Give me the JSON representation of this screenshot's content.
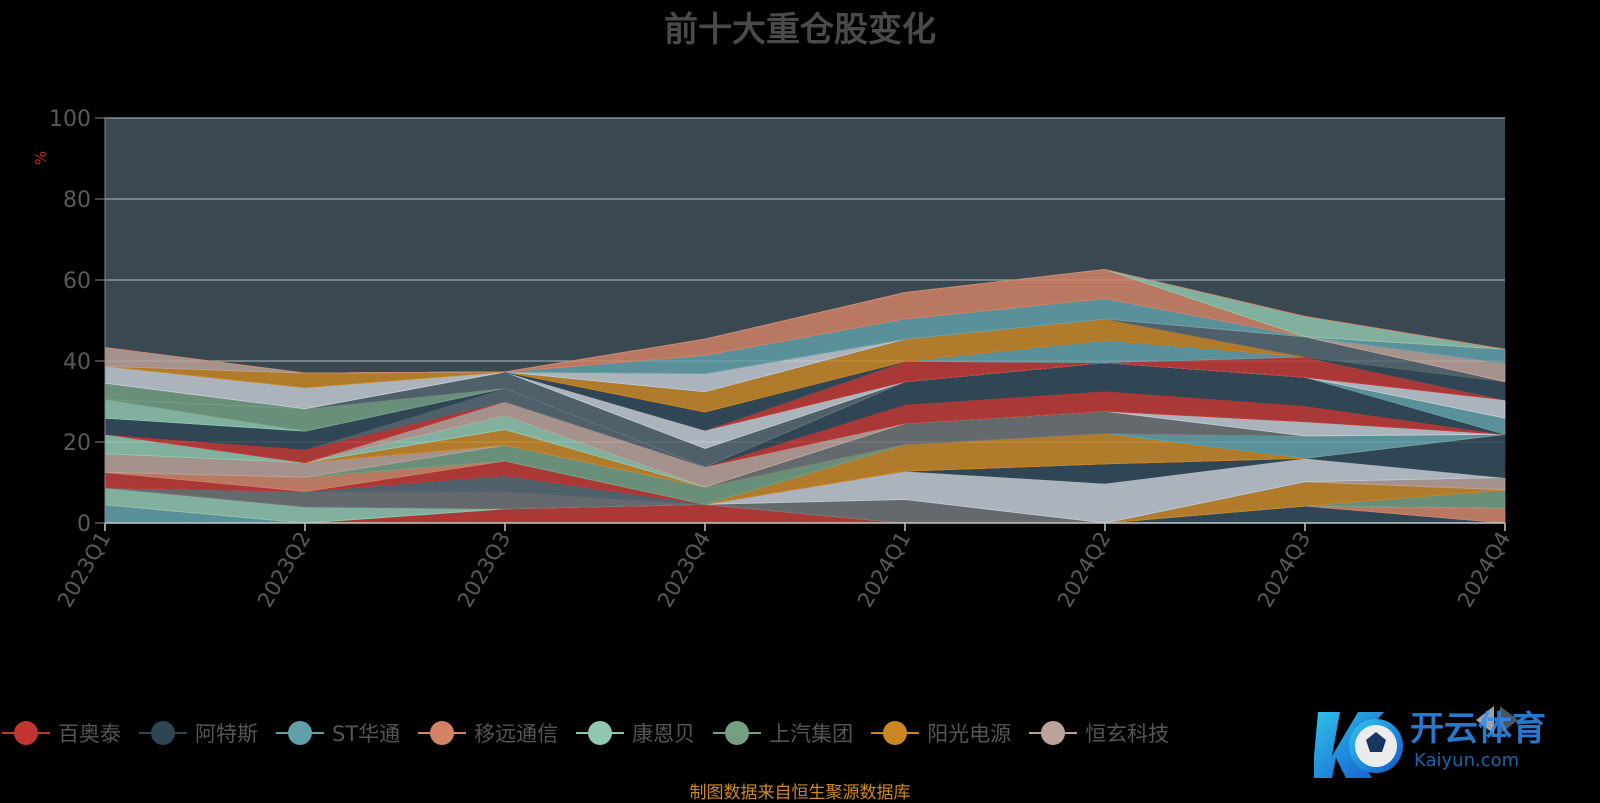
{
  "chart_data": {
    "type": "area",
    "title": "前十大重仓股变化",
    "xlabel": "",
    "ylabel": "%",
    "ylim": [
      0,
      100
    ],
    "yticks": [
      0,
      20,
      40,
      60,
      80,
      100
    ],
    "grid": true,
    "stacked": true,
    "legend_position": "bottom",
    "categories": [
      "2023Q1",
      "2023Q2",
      "2023Q3",
      "2023Q4",
      "2024Q1",
      "2024Q2",
      "2024Q3",
      "2024Q4"
    ],
    "series": [
      {
        "name": "百奥泰",
        "color": "#c23531",
        "values": [
          0,
          0,
          3.5,
          4.6,
          0,
          0,
          0,
          0
        ]
      },
      {
        "name": "阿特斯",
        "color": "#2f4554",
        "values": [
          0,
          0,
          0,
          0,
          0,
          0,
          4.2,
          0
        ]
      },
      {
        "name": "ST华通",
        "color": "#61a0a8",
        "values": [
          4.5,
          0,
          0,
          0,
          0,
          0,
          0,
          0
        ]
      },
      {
        "name": "移远通信",
        "color": "#d48265",
        "values": [
          0,
          0,
          0,
          0,
          0,
          0,
          0,
          3.7
        ]
      },
      {
        "name": "康恩贝",
        "color": "#91c7ae",
        "values": [
          4.2,
          4.0,
          0,
          0,
          0,
          0,
          0,
          0
        ]
      },
      {
        "name": "上汽集团",
        "color": "#749f83",
        "values": [
          0,
          0,
          0,
          0,
          0,
          0,
          0,
          4.5
        ]
      },
      {
        "name": "阳光电源",
        "color": "#ca8622",
        "values": [
          0,
          0,
          0,
          0,
          0,
          0,
          6.0,
          0
        ]
      },
      {
        "name": "恒玄科技",
        "color": "#bda29a",
        "values": [
          0,
          0,
          0,
          0,
          0,
          0,
          0,
          3.0
        ]
      },
      {
        "name": "",
        "color": "#6e7074",
        "values": [
          0,
          3.8,
          4.2,
          0,
          5.8,
          0,
          0,
          0
        ]
      },
      {
        "name": "",
        "color": "#546570",
        "values": [
          0,
          0,
          4.0,
          0,
          0,
          0,
          0,
          0
        ]
      },
      {
        "name": "",
        "color": "#c4ccd3",
        "values": [
          0,
          0,
          0,
          0,
          7.0,
          9.8,
          5.8,
          0
        ]
      },
      {
        "name": "",
        "color": "#2f4554",
        "values": [
          0,
          0,
          0,
          0,
          0,
          4.8,
          0,
          10.7
        ]
      },
      {
        "name": "",
        "color": "#c23531",
        "values": [
          3.8,
          0,
          3.6,
          0,
          0,
          0,
          0,
          0
        ]
      },
      {
        "name": "",
        "color": "#d48265",
        "values": [
          0,
          3.5,
          0,
          0,
          0,
          0,
          0,
          0
        ]
      },
      {
        "name": "",
        "color": "#ca8622",
        "values": [
          0,
          0,
          0,
          0,
          6.6,
          7.5,
          0,
          0
        ]
      },
      {
        "name": "",
        "color": "#61a0a8",
        "values": [
          0,
          0,
          0,
          0,
          0,
          0,
          5.5,
          0
        ]
      },
      {
        "name": "",
        "color": "#749f83",
        "values": [
          0,
          0,
          3.9,
          4.3,
          0,
          0,
          0,
          0
        ]
      },
      {
        "name": "",
        "color": "#bda29a",
        "values": [
          4.6,
          3.6,
          0,
          0,
          0,
          0,
          0,
          0
        ]
      },
      {
        "name": "",
        "color": "#ca8622",
        "values": [
          0,
          0,
          3.9,
          0,
          0,
          0,
          0,
          0
        ]
      },
      {
        "name": "",
        "color": "#6e7074",
        "values": [
          0,
          0,
          0,
          0,
          5.2,
          5.5,
          0,
          0
        ]
      },
      {
        "name": "",
        "color": "#c4ccd3",
        "values": [
          0,
          0,
          0,
          0,
          0,
          0,
          3.5,
          0
        ]
      },
      {
        "name": "",
        "color": "#91c7ae",
        "values": [
          4.8,
          0,
          3.4,
          0,
          0,
          0,
          0,
          0
        ]
      },
      {
        "name": "",
        "color": "#bda29a",
        "values": [
          0,
          0,
          3.5,
          5.0,
          0,
          0,
          0,
          0
        ]
      },
      {
        "name": "",
        "color": "#c23531",
        "values": [
          0,
          3.3,
          0,
          0,
          4.7,
          5.0,
          4.0,
          0
        ]
      },
      {
        "name": "",
        "color": "#2f4554",
        "values": [
          4.0,
          0,
          0,
          0,
          0,
          0,
          0,
          0
        ]
      },
      {
        "name": "",
        "color": "#546570",
        "values": [
          0,
          0,
          3.3,
          0,
          0,
          0,
          0,
          0
        ]
      },
      {
        "name": "",
        "color": "#2f4554",
        "values": [
          0,
          4.5,
          0,
          0,
          5.6,
          7.0,
          7.0,
          0
        ]
      },
      {
        "name": "",
        "color": "#61a0a8",
        "values": [
          0,
          0,
          0,
          0,
          0,
          0,
          0,
          4.0
        ]
      },
      {
        "name": "",
        "color": "#91c7ae",
        "values": [
          4.6,
          0,
          0,
          0,
          0,
          0,
          0,
          0
        ]
      },
      {
        "name": "",
        "color": "#749f83",
        "values": [
          0,
          5.5,
          0,
          0,
          0,
          0,
          0,
          0
        ]
      },
      {
        "name": "",
        "color": "#749f83",
        "values": [
          4.0,
          0,
          0,
          0,
          0,
          0,
          0,
          0
        ]
      },
      {
        "name": "",
        "color": "#c4ccd3",
        "values": [
          0,
          0,
          0,
          0,
          0,
          0,
          0,
          4.5
        ]
      },
      {
        "name": "",
        "color": "#546570",
        "values": [
          0,
          0,
          4.0,
          4.5,
          0,
          0,
          0,
          0
        ]
      },
      {
        "name": "",
        "color": "#c4ccd3",
        "values": [
          0,
          0,
          0,
          4.5,
          0,
          0,
          0,
          0
        ]
      },
      {
        "name": "",
        "color": "#c23531",
        "values": [
          0,
          0,
          0,
          0,
          5.0,
          0,
          5.0,
          0
        ]
      },
      {
        "name": "",
        "color": "#61a0a8",
        "values": [
          0,
          0,
          0,
          0,
          0,
          5.5,
          0,
          0
        ]
      },
      {
        "name": "",
        "color": "#2f4554",
        "values": [
          0,
          0,
          0,
          4.5,
          0,
          0,
          0,
          4.5
        ]
      },
      {
        "name": "",
        "color": "#ca8622",
        "values": [
          0,
          0,
          0,
          5.0,
          5.5,
          5.3,
          0,
          0
        ]
      },
      {
        "name": "",
        "color": "#546570",
        "values": [
          0,
          0,
          0,
          0,
          0,
          0,
          5.0,
          0
        ]
      },
      {
        "name": "",
        "color": "#c4ccd3",
        "values": [
          4.2,
          5.2,
          0,
          4.5,
          0,
          0,
          0,
          0
        ]
      },
      {
        "name": "",
        "color": "#ca8622",
        "values": [
          0,
          3.6,
          0,
          0,
          0,
          0,
          0,
          0
        ]
      },
      {
        "name": "",
        "color": "#bda29a",
        "values": [
          4.6,
          0,
          0,
          0,
          0,
          0,
          0,
          4.5
        ]
      },
      {
        "name": "",
        "color": "#61a0a8",
        "values": [
          0,
          0,
          0,
          4.5,
          5.0,
          5.0,
          0,
          3.5
        ]
      },
      {
        "name": "",
        "color": "#d48265",
        "values": [
          0,
          0,
          0,
          4.0,
          6.5,
          7.2,
          0,
          0
        ]
      },
      {
        "name": "",
        "color": "#91c7ae",
        "values": [
          0,
          0,
          0,
          0,
          0,
          0,
          5.0,
          0
        ]
      },
      {
        "name": "",
        "color": "#d48265",
        "values": [
          0,
          0,
          0,
          0,
          0,
          0,
          0,
          0
        ]
      }
    ],
    "source_note": "制图数据来自恒生聚源数据库"
  },
  "watermark": {
    "brand": "开云体育",
    "domain": "Kaiyun.com"
  }
}
